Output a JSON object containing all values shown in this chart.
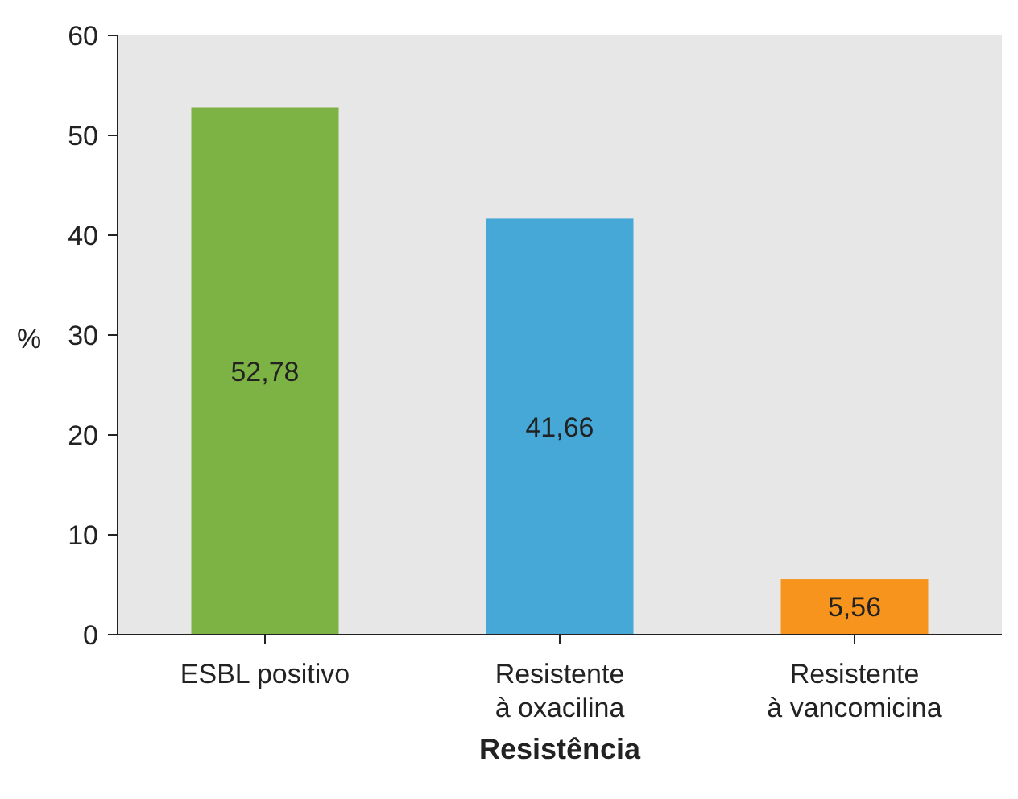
{
  "chart_data": {
    "type": "bar",
    "xlabel": "Resistência",
    "ylabel": "%",
    "categories": [
      "ESBL positivo",
      "Resistente\nà oxacilina",
      "Resistente\nà vancomicina"
    ],
    "values": [
      52.78,
      41.66,
      5.56
    ],
    "colors": [
      "#7db244",
      "#46a8d6",
      "#f7941d"
    ],
    "value_labels": [
      "52,78",
      "41,66",
      "5,56"
    ],
    "ylim": [
      0,
      60
    ],
    "yticks": [
      0,
      10,
      20,
      30,
      40,
      50,
      60
    ],
    "grid": false
  }
}
